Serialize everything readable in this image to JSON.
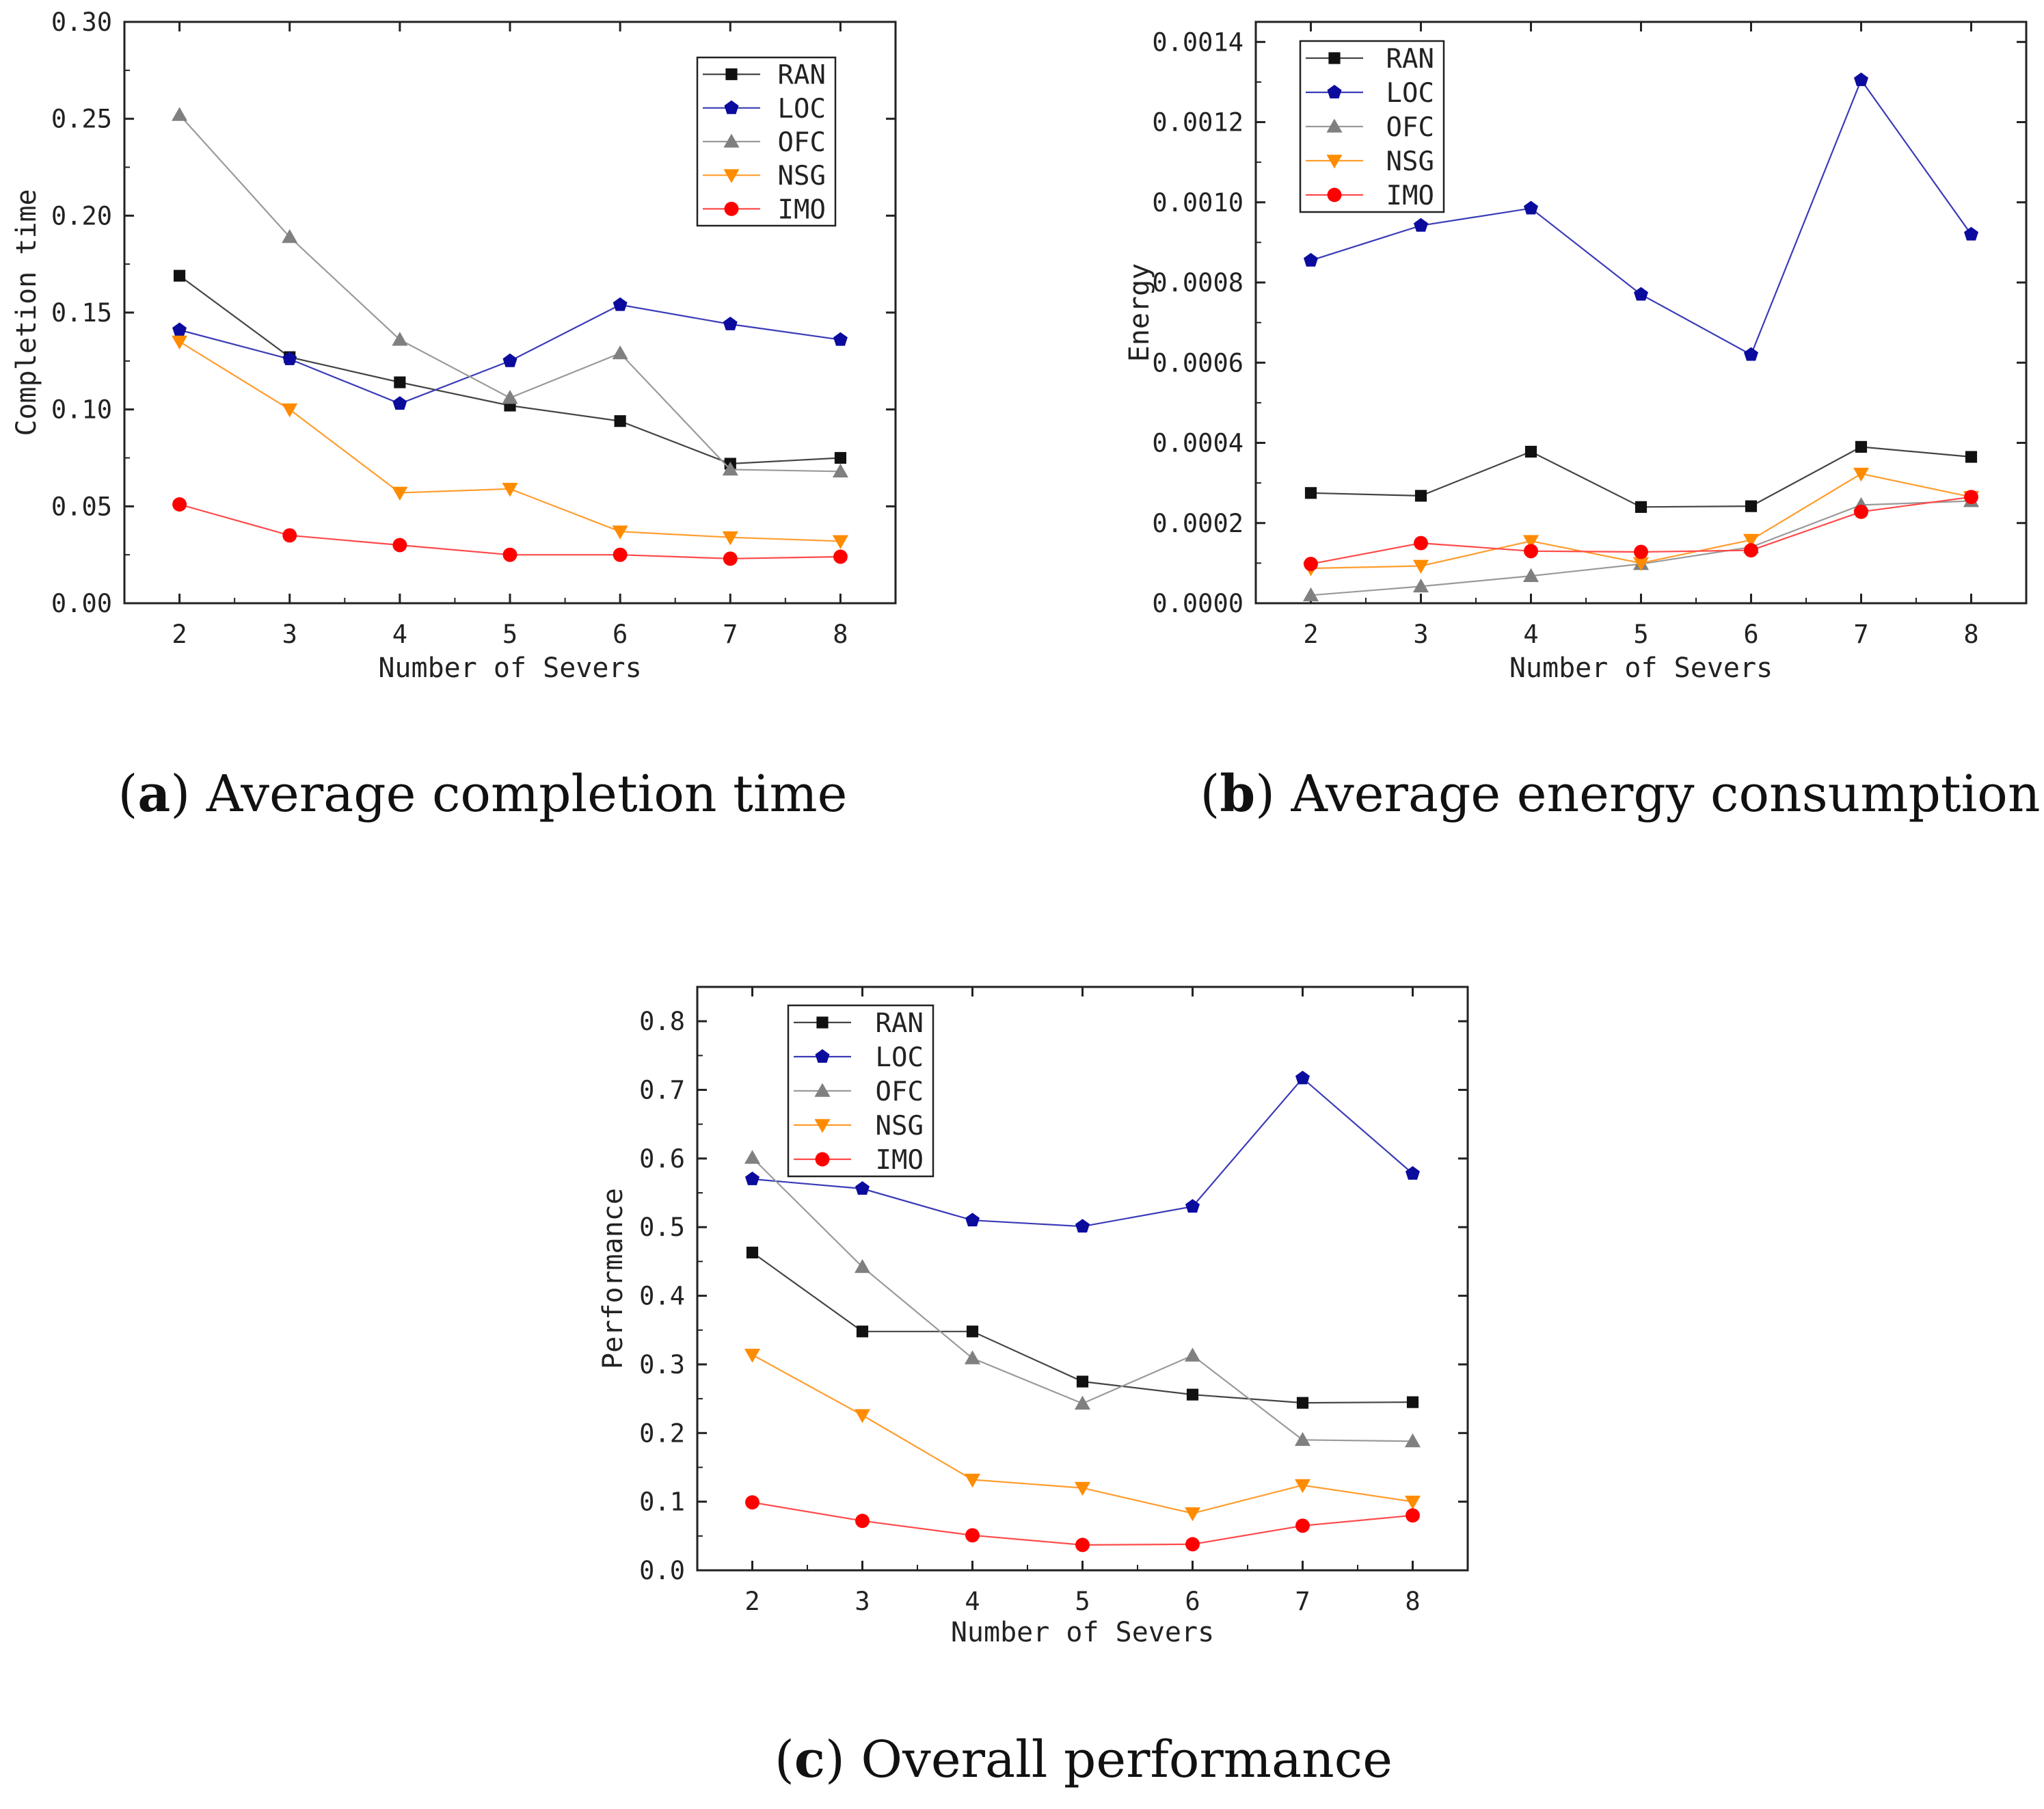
{
  "chart_data": [
    {
      "id": "a",
      "type": "line",
      "caption_letter": "a",
      "caption_text": "Average completion time",
      "xlabel": "Number of Severs",
      "ylabel": "Completion time",
      "categories": [
        2,
        3,
        4,
        5,
        6,
        7,
        8
      ],
      "xlim": [
        1.5,
        8.5
      ],
      "ylim": [
        0,
        0.3
      ],
      "yticks": [
        0.0,
        0.05,
        0.1,
        0.15,
        0.2,
        0.25,
        0.3
      ],
      "ytick_labels": [
        "0.00",
        "0.05",
        "0.10",
        "0.15",
        "0.20",
        "0.25",
        "0.30"
      ],
      "legend_position": "top-right",
      "series": [
        {
          "name": "RAN",
          "values": [
            0.169,
            0.127,
            0.114,
            0.102,
            0.094,
            0.072,
            0.075
          ]
        },
        {
          "name": "LOC",
          "values": [
            0.141,
            0.126,
            0.103,
            0.125,
            0.154,
            0.144,
            0.136
          ]
        },
        {
          "name": "OFC",
          "values": [
            0.252,
            0.189,
            0.136,
            0.106,
            0.129,
            0.069,
            0.068
          ]
        },
        {
          "name": "NSG",
          "values": [
            0.135,
            0.1,
            0.057,
            0.059,
            0.037,
            0.034,
            0.032
          ]
        },
        {
          "name": "IMO",
          "values": [
            0.051,
            0.035,
            0.03,
            0.025,
            0.025,
            0.023,
            0.024
          ]
        }
      ]
    },
    {
      "id": "b",
      "type": "line",
      "caption_letter": "b",
      "caption_text": "Average energy consumption",
      "xlabel": "Number of Severs",
      "ylabel": "Energy",
      "categories": [
        2,
        3,
        4,
        5,
        6,
        7,
        8
      ],
      "xlim": [
        1.5,
        8.5
      ],
      "ylim": [
        0,
        0.00145
      ],
      "yticks": [
        0.0,
        0.0002,
        0.0004,
        0.0006,
        0.0008,
        0.001,
        0.0012,
        0.0014
      ],
      "ytick_labels": [
        "0.0000",
        "0.0002",
        "0.0004",
        "0.0006",
        "0.0008",
        "0.0010",
        "0.0012",
        "0.0014"
      ],
      "legend_position": "top-left",
      "series": [
        {
          "name": "RAN",
          "values": [
            0.000275,
            0.000268,
            0.000378,
            0.00024,
            0.000242,
            0.00039,
            0.000365
          ]
        },
        {
          "name": "LOC",
          "values": [
            0.000855,
            0.000942,
            0.000985,
            0.00077,
            0.00062,
            0.001305,
            0.00092
          ]
        },
        {
          "name": "OFC",
          "values": [
            2e-05,
            4.2e-05,
            6.8e-05,
            9.8e-05,
            0.00014,
            0.000245,
            0.000255
          ]
        },
        {
          "name": "NSG",
          "values": [
            8.7e-05,
            9.3e-05,
            0.000155,
            0.0001,
            0.000158,
            0.000323,
            0.000265
          ]
        },
        {
          "name": "IMO",
          "values": [
            9.8e-05,
            0.00015,
            0.00013,
            0.000128,
            0.000132,
            0.000228,
            0.000265
          ]
        }
      ]
    },
    {
      "id": "c",
      "type": "line",
      "caption_letter": "c",
      "caption_text": "Overall performance",
      "xlabel": "Number of Severs",
      "ylabel": "Performance",
      "categories": [
        2,
        3,
        4,
        5,
        6,
        7,
        8
      ],
      "xlim": [
        1.5,
        8.5
      ],
      "ylim": [
        0,
        0.85
      ],
      "yticks": [
        0.0,
        0.1,
        0.2,
        0.3,
        0.4,
        0.5,
        0.6,
        0.7,
        0.8
      ],
      "ytick_labels": [
        "0.0",
        "0.1",
        "0.2",
        "0.3",
        "0.4",
        "0.5",
        "0.6",
        "0.7",
        "0.8"
      ],
      "legend_position": "top-left",
      "series": [
        {
          "name": "RAN",
          "values": [
            0.463,
            0.348,
            0.348,
            0.275,
            0.256,
            0.244,
            0.245
          ]
        },
        {
          "name": "LOC",
          "values": [
            0.57,
            0.556,
            0.51,
            0.501,
            0.53,
            0.717,
            0.578
          ]
        },
        {
          "name": "OFC",
          "values": [
            0.601,
            0.442,
            0.309,
            0.243,
            0.313,
            0.19,
            0.188
          ]
        },
        {
          "name": "NSG",
          "values": [
            0.314,
            0.226,
            0.132,
            0.12,
            0.083,
            0.124,
            0.1
          ]
        },
        {
          "name": "IMO",
          "values": [
            0.099,
            0.072,
            0.051,
            0.037,
            0.038,
            0.065,
            0.08
          ]
        }
      ]
    }
  ],
  "series_styles": {
    "RAN": {
      "marker": "square",
      "color": "#111111",
      "line_color": "#444444"
    },
    "LOC": {
      "marker": "pentagon",
      "color": "#0b0b9e",
      "line_color": "#3b3bb8"
    },
    "OFC": {
      "marker": "triangle-up",
      "color": "#808080",
      "line_color": "#9a9a9a"
    },
    "NSG": {
      "marker": "triangle-down",
      "color": "#ff8c00",
      "line_color": "#ff9d2e"
    },
    "IMO": {
      "marker": "circle",
      "color": "#ff0000",
      "line_color": "#ff4a4a"
    }
  }
}
